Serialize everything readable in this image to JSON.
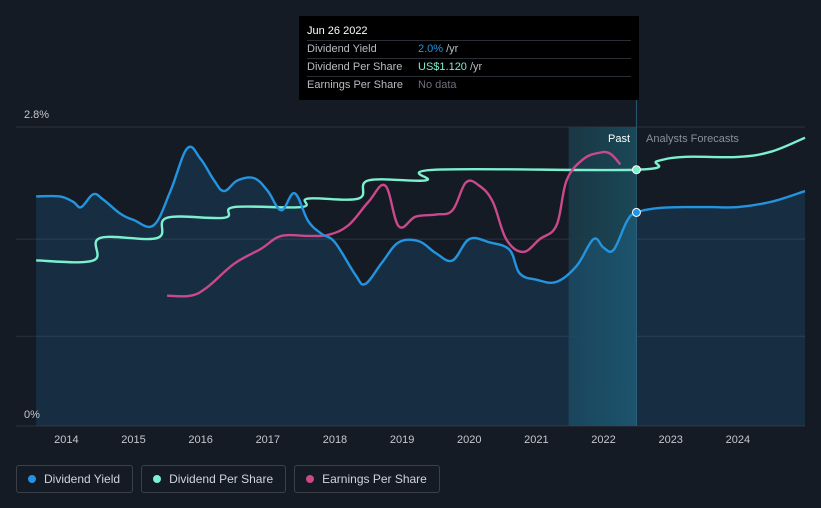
{
  "tooltip": {
    "date": "Jun 26 2022",
    "rows": [
      {
        "label": "Dividend Yield",
        "value": "2.0%",
        "unit": "/yr"
      },
      {
        "label": "Dividend Per Share",
        "value": "US$1.120",
        "unit": "/yr"
      },
      {
        "label": "Earnings Per Share",
        "value": "No data",
        "unit": ""
      }
    ]
  },
  "legend": [
    {
      "label": "Dividend Yield",
      "color": "#2394df"
    },
    {
      "label": "Dividend Per Share",
      "color": "#7df0d0"
    },
    {
      "label": "Earnings Per Share",
      "color": "#c9498a"
    }
  ],
  "chart_data": {
    "type": "line",
    "title": "",
    "xlabel": "",
    "ylabel": "",
    "x_ticks": [
      "2014",
      "2015",
      "2016",
      "2017",
      "2018",
      "2019",
      "2020",
      "2021",
      "2022",
      "2023",
      "2024"
    ],
    "y_tick_labels": [
      "2.8%",
      "0%"
    ],
    "ylim": [
      0,
      2.8
    ],
    "xlim": [
      2013.0,
      2025.0
    ],
    "past_label": "Past",
    "forecast_label": "Analysts Forecasts",
    "past_region": [
      2021.48,
      2022.49
    ],
    "grid": true,
    "series": [
      {
        "name": "Dividend Yield",
        "color": "#2394df",
        "points": [
          [
            2013.55,
            2.15
          ],
          [
            2013.9,
            2.15
          ],
          [
            2014.1,
            2.1
          ],
          [
            2014.22,
            2.05
          ],
          [
            2014.4,
            2.17
          ],
          [
            2014.55,
            2.12
          ],
          [
            2014.8,
            1.99
          ],
          [
            2015.0,
            1.93
          ],
          [
            2015.3,
            1.88
          ],
          [
            2015.55,
            2.2
          ],
          [
            2015.8,
            2.6
          ],
          [
            2016.0,
            2.5
          ],
          [
            2016.2,
            2.3
          ],
          [
            2016.35,
            2.2
          ],
          [
            2016.55,
            2.3
          ],
          [
            2016.8,
            2.32
          ],
          [
            2017.0,
            2.2
          ],
          [
            2017.2,
            2.02
          ],
          [
            2017.4,
            2.18
          ],
          [
            2017.6,
            1.92
          ],
          [
            2017.8,
            1.8
          ],
          [
            2018.0,
            1.72
          ],
          [
            2018.3,
            1.42
          ],
          [
            2018.45,
            1.33
          ],
          [
            2018.7,
            1.53
          ],
          [
            2018.95,
            1.72
          ],
          [
            2019.25,
            1.73
          ],
          [
            2019.5,
            1.62
          ],
          [
            2019.75,
            1.55
          ],
          [
            2020.0,
            1.75
          ],
          [
            2020.3,
            1.72
          ],
          [
            2020.6,
            1.65
          ],
          [
            2020.75,
            1.43
          ],
          [
            2021.0,
            1.37
          ],
          [
            2021.3,
            1.35
          ],
          [
            2021.6,
            1.5
          ],
          [
            2021.85,
            1.75
          ],
          [
            2022.0,
            1.67
          ],
          [
            2022.15,
            1.65
          ],
          [
            2022.35,
            1.92
          ],
          [
            2022.49,
            2.0
          ],
          [
            2022.8,
            2.04
          ],
          [
            2023.2,
            2.05
          ],
          [
            2023.6,
            2.05
          ],
          [
            2024.0,
            2.05
          ],
          [
            2024.5,
            2.1
          ],
          [
            2025.0,
            2.2
          ]
        ]
      },
      {
        "name": "Dividend Per Share",
        "color": "#7df0d0",
        "points": [
          [
            2013.55,
            1.55
          ],
          [
            2014.4,
            1.55
          ],
          [
            2014.5,
            1.76
          ],
          [
            2015.35,
            1.76
          ],
          [
            2015.5,
            1.95
          ],
          [
            2016.35,
            1.95
          ],
          [
            2016.5,
            2.05
          ],
          [
            2017.5,
            2.05
          ],
          [
            2017.6,
            2.13
          ],
          [
            2018.35,
            2.13
          ],
          [
            2018.5,
            2.3
          ],
          [
            2019.35,
            2.3
          ],
          [
            2019.5,
            2.4
          ],
          [
            2022.5,
            2.4
          ],
          [
            2022.8,
            2.48
          ],
          [
            2023.2,
            2.52
          ],
          [
            2024.0,
            2.52
          ],
          [
            2024.5,
            2.57
          ],
          [
            2025.0,
            2.7
          ]
        ]
      },
      {
        "name": "Earnings Per Share",
        "color": "#c9498a",
        "points": [
          [
            2015.5,
            1.22
          ],
          [
            2015.85,
            1.22
          ],
          [
            2016.1,
            1.3
          ],
          [
            2016.5,
            1.52
          ],
          [
            2016.9,
            1.66
          ],
          [
            2017.2,
            1.78
          ],
          [
            2017.6,
            1.78
          ],
          [
            2017.9,
            1.79
          ],
          [
            2018.2,
            1.88
          ],
          [
            2018.5,
            2.1
          ],
          [
            2018.75,
            2.25
          ],
          [
            2018.95,
            1.87
          ],
          [
            2019.2,
            1.96
          ],
          [
            2019.5,
            1.98
          ],
          [
            2019.75,
            2.02
          ],
          [
            2019.95,
            2.28
          ],
          [
            2020.15,
            2.25
          ],
          [
            2020.35,
            2.1
          ],
          [
            2020.55,
            1.75
          ],
          [
            2020.8,
            1.63
          ],
          [
            2021.05,
            1.75
          ],
          [
            2021.3,
            1.88
          ],
          [
            2021.45,
            2.3
          ],
          [
            2021.7,
            2.5
          ],
          [
            2021.95,
            2.56
          ],
          [
            2022.1,
            2.55
          ],
          [
            2022.25,
            2.45
          ]
        ]
      }
    ],
    "markers": [
      {
        "series": "Dividend Yield",
        "x": 2022.49,
        "y": 2.0
      },
      {
        "series": "Dividend Per Share",
        "x": 2022.49,
        "y": 2.4
      }
    ]
  }
}
